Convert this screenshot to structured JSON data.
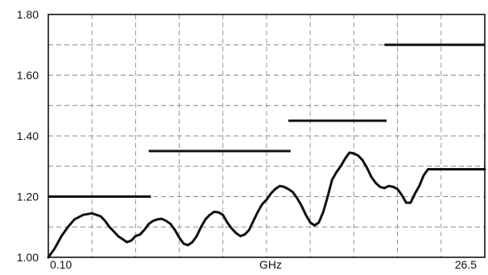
{
  "chart_data": {
    "type": "line",
    "title": "",
    "xlabel": "GHz",
    "ylabel": "",
    "x_tick_labels": {
      "left": "0.10",
      "center": "GHz",
      "right": "26.5"
    },
    "x_domain": [
      0,
      100
    ],
    "ylim": [
      1.0,
      1.8
    ],
    "y_ticks": [
      "1.00",
      "1.20",
      "1.40",
      "1.60",
      "1.80"
    ],
    "grid": true,
    "limit_series": [
      {
        "segments": [
          {
            "x": [
              0,
              23.5
            ],
            "y": 1.2
          },
          {
            "x": [
              23,
              55.5
            ],
            "y": 1.35
          },
          {
            "x": [
              55,
              77.5
            ],
            "y": 1.45
          },
          {
            "x": [
              77,
              100
            ],
            "y": 1.7
          }
        ]
      }
    ],
    "series": [
      {
        "x": [
          0,
          1.5,
          3,
          4.5,
          6,
          8,
          10,
          12,
          13,
          14,
          15,
          16,
          18,
          19,
          20,
          21,
          22,
          23,
          24,
          25,
          26,
          27,
          28,
          29,
          30,
          31,
          32,
          33,
          34,
          35,
          36,
          37,
          38,
          39,
          40,
          41,
          42,
          43,
          44,
          45,
          46,
          47,
          48,
          49,
          50,
          51,
          52,
          53,
          54,
          55,
          56,
          57,
          58,
          59,
          60,
          61,
          62,
          63,
          64,
          65,
          66,
          67,
          68,
          69,
          70,
          71,
          72,
          73,
          74,
          75,
          76,
          77,
          78,
          79,
          80,
          81,
          82,
          83,
          84,
          85,
          86,
          87,
          88,
          89,
          90,
          91,
          92,
          93,
          94,
          95,
          96,
          97,
          98,
          99,
          100
        ],
        "y": [
          1.0,
          1.03,
          1.07,
          1.1,
          1.125,
          1.14,
          1.145,
          1.135,
          1.12,
          1.1,
          1.085,
          1.07,
          1.05,
          1.055,
          1.07,
          1.075,
          1.09,
          1.11,
          1.12,
          1.125,
          1.127,
          1.12,
          1.11,
          1.09,
          1.065,
          1.045,
          1.04,
          1.05,
          1.07,
          1.1,
          1.125,
          1.14,
          1.15,
          1.148,
          1.14,
          1.115,
          1.095,
          1.08,
          1.07,
          1.075,
          1.09,
          1.12,
          1.15,
          1.175,
          1.19,
          1.21,
          1.225,
          1.235,
          1.232,
          1.225,
          1.215,
          1.195,
          1.17,
          1.14,
          1.115,
          1.105,
          1.115,
          1.15,
          1.2,
          1.255,
          1.28,
          1.3,
          1.325,
          1.345,
          1.342,
          1.335,
          1.32,
          1.295,
          1.265,
          1.245,
          1.232,
          1.228,
          1.235,
          1.232,
          1.225,
          1.205,
          1.18,
          1.18,
          1.21,
          1.235,
          1.27,
          1.29,
          1.29,
          1.29,
          1.29,
          1.29,
          1.29,
          1.29,
          1.29,
          1.29,
          1.29,
          1.29,
          1.29,
          1.29,
          1.29
        ]
      }
    ]
  }
}
